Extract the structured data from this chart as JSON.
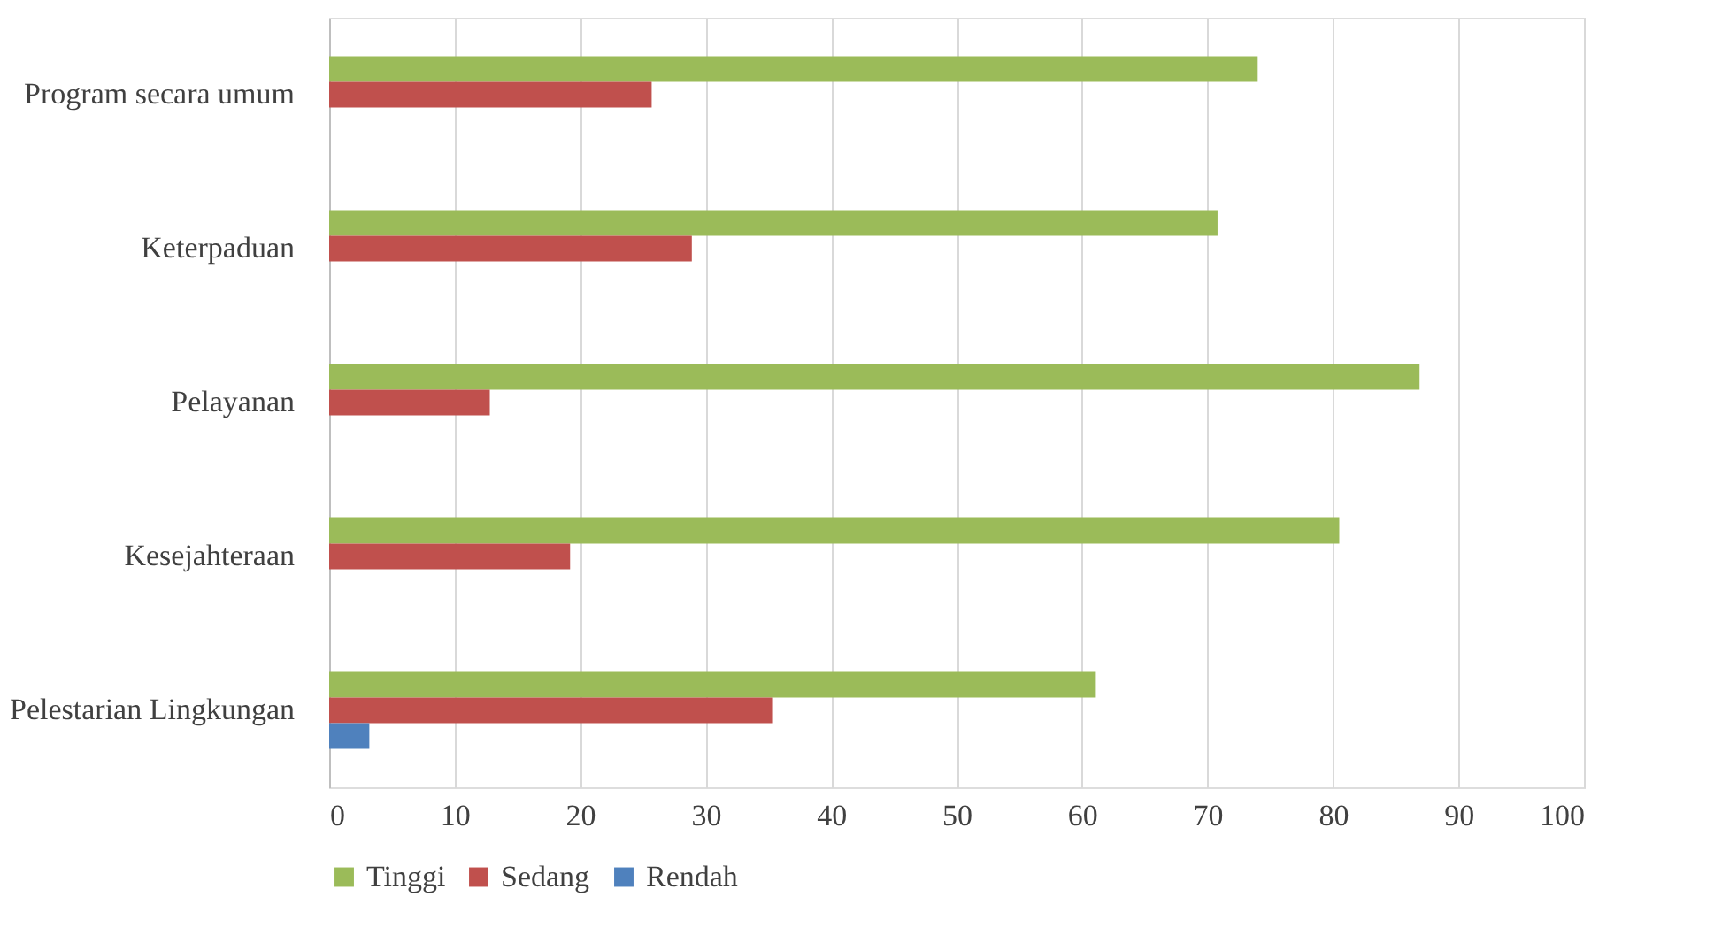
{
  "chart_data": {
    "type": "bar",
    "orientation": "horizontal",
    "categories": [
      "Program secara umum",
      "Keterpaduan",
      "Pelayanan",
      "Kesejahteraan",
      "Pelestarian Lingkungan"
    ],
    "series": [
      {
        "name": "Tinggi",
        "color": "#9bbb59",
        "values": [
          74.0,
          70.8,
          86.9,
          80.5,
          61.1
        ]
      },
      {
        "name": "Sedang",
        "color": "#c0504d",
        "values": [
          25.7,
          28.9,
          12.8,
          19.2,
          35.3
        ]
      },
      {
        "name": "Rendah",
        "color": "#4f81bd",
        "values": [
          null,
          null,
          null,
          null,
          3.2
        ]
      }
    ],
    "xlim": [
      0,
      100
    ],
    "xticks": [
      0,
      10,
      20,
      30,
      40,
      50,
      60,
      70,
      80,
      90,
      100
    ],
    "grid": "x",
    "legend": "bottom"
  }
}
